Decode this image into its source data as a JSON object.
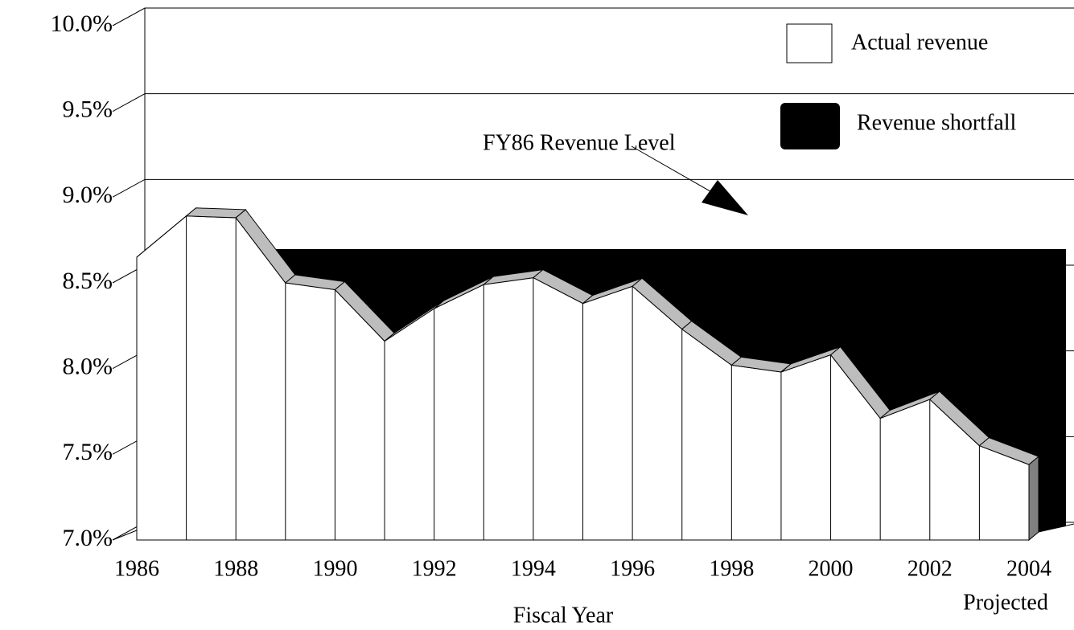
{
  "chart_data": {
    "type": "area3d",
    "categories": [
      "1986",
      null,
      "1988",
      null,
      "1990",
      null,
      "1992",
      null,
      "1994",
      null,
      "1996",
      null,
      "1998",
      null,
      "2000",
      null,
      "2002",
      null,
      "2004"
    ],
    "series": [
      {
        "name": "Actual revenue",
        "color": "#ffffff",
        "values": [
          8.65,
          8.89,
          8.88,
          8.5,
          8.46,
          8.16,
          8.35,
          8.49,
          8.53,
          8.38,
          8.48,
          8.23,
          8.02,
          7.98,
          8.08,
          7.71,
          7.82,
          7.55,
          7.44
        ]
      }
    ],
    "shortfall": {
      "name": "Revenue shortfall",
      "color": "#000000"
    },
    "ylim": [
      7,
      10
    ],
    "yticks": [
      {
        "value": 7,
        "label": "7.0%"
      },
      {
        "value": 7.5,
        "label": "7.5%"
      },
      {
        "value": 8,
        "label": "8.0%"
      },
      {
        "value": 8.5,
        "label": "8.5%"
      },
      {
        "value": 9,
        "label": "9.0%"
      },
      {
        "value": 9.5,
        "label": "9.5%"
      },
      {
        "value": 10,
        "label": "10.0%"
      }
    ],
    "grid": true,
    "annotation": "FY86 Revenue Level",
    "xlabel": "Fiscal Year",
    "note": "Projected"
  }
}
